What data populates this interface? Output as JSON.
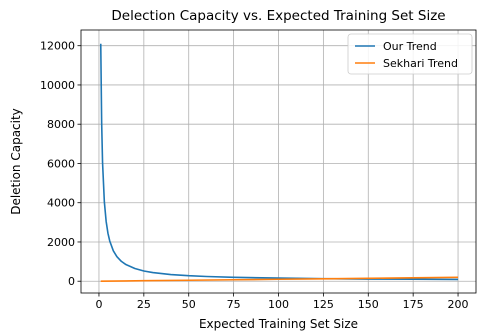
{
  "chart_data": {
    "type": "line",
    "title": "Delection Capacity vs. Expected Training Set Size",
    "xlabel": "Expected Training Set Size",
    "ylabel": "Deletion Capacity",
    "xlim": [
      -10,
      210
    ],
    "ylim": [
      -600,
      12800
    ],
    "xticks": [
      0,
      25,
      50,
      75,
      100,
      125,
      150,
      175,
      200
    ],
    "yticks": [
      0,
      2000,
      4000,
      6000,
      8000,
      10000,
      12000
    ],
    "grid": true,
    "legend_position": "top-right",
    "series": [
      {
        "name": "Our Trend",
        "color": "#1f77b4",
        "x": [
          1,
          1.5,
          2,
          3,
          4,
          5,
          6,
          8,
          10,
          12.5,
          15,
          20,
          25,
          30,
          40,
          50,
          60,
          75,
          100,
          125,
          150,
          175,
          200
        ],
        "y": [
          12100,
          8100,
          6050,
          4050,
          3050,
          2450,
          2050,
          1550,
          1250,
          1010,
          850,
          650,
          520,
          440,
          340,
          280,
          240,
          200,
          160,
          130,
          110,
          100,
          90
        ]
      },
      {
        "name": "Sekhari Trend",
        "color": "#ff7f0e",
        "x": [
          1,
          25,
          50,
          75,
          100,
          125,
          150,
          175,
          200
        ],
        "y": [
          1,
          25,
          50,
          75,
          100,
          125,
          150,
          175,
          200
        ]
      }
    ]
  }
}
